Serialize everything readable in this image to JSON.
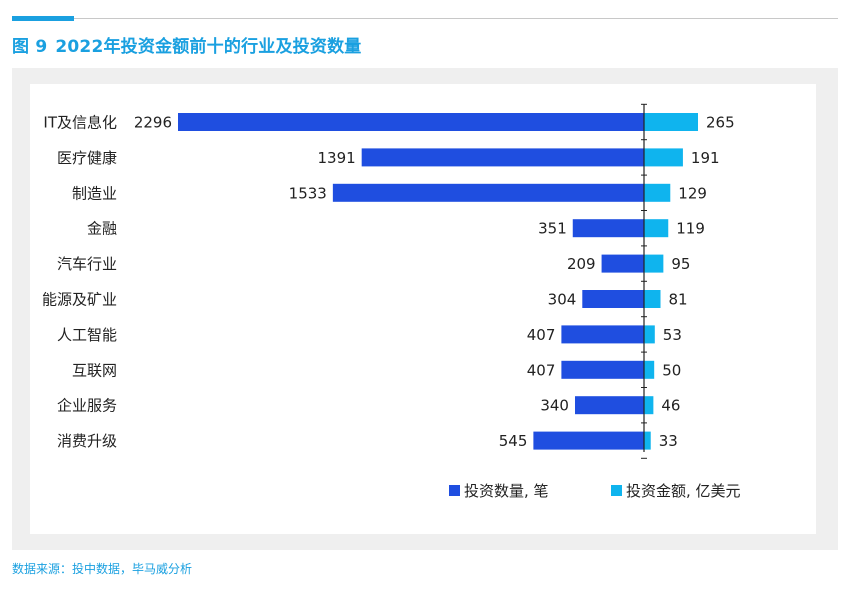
{
  "header": {
    "figure_number": "图 9",
    "title": "2022年投资金额前十的行业及投资数量"
  },
  "source": "数据来源：投中数据，毕马威分析",
  "colors": {
    "accent": "#1aa0e0",
    "count_bar": "#1f4ee0",
    "amount_bar": "#0fb4ee"
  },
  "chart_data": {
    "type": "bar",
    "orientation": "horizontal-diverging",
    "title": "2022年投资金额前十的行业及投资数量",
    "categories": [
      "IT及信息化",
      "医疗健康",
      "制造业",
      "金融",
      "汽车行业",
      "能源及矿业",
      "人工智能",
      "互联网",
      "企业服务",
      "消费升级"
    ],
    "series": [
      {
        "name": "投资数量, 笔",
        "direction": "left",
        "values": [
          2296,
          1391,
          1533,
          351,
          209,
          304,
          407,
          407,
          340,
          545
        ]
      },
      {
        "name": "投资金额, 亿美元",
        "direction": "right",
        "values": [
          265,
          191,
          129,
          119,
          95,
          81,
          53,
          50,
          46,
          33
        ]
      }
    ],
    "legend": [
      "投资数量, 笔",
      "投资金额, 亿美元"
    ],
    "legend_position": "bottom-right",
    "xlabel": "",
    "ylabel": ""
  }
}
